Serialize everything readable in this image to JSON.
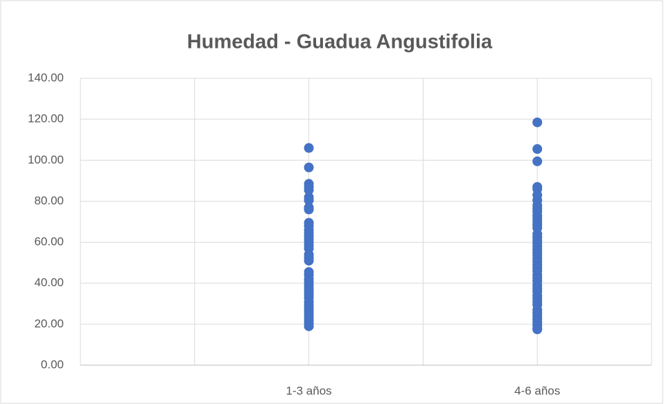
{
  "chart_data": {
    "type": "scatter",
    "title": "Humedad - Guadua Angustifolia",
    "xlim": [
      0,
      5
    ],
    "xgrid": [
      1,
      2,
      3,
      4,
      5
    ],
    "xticks": [
      {
        "value": 2,
        "label": "1-3 años"
      },
      {
        "value": 4,
        "label": "4-6 años"
      }
    ],
    "ylim": [
      0,
      140
    ],
    "yticks": [
      {
        "value": 0,
        "label": "0.00"
      },
      {
        "value": 20,
        "label": "20.00"
      },
      {
        "value": 40,
        "label": "40.00"
      },
      {
        "value": 60,
        "label": "60.00"
      },
      {
        "value": 80,
        "label": "80.00"
      },
      {
        "value": 100,
        "label": "100.00"
      },
      {
        "value": 120,
        "label": "120.00"
      },
      {
        "value": 140,
        "label": "140.00"
      }
    ],
    "grid": true,
    "series": [
      {
        "color": "#4472c4",
        "x": [
          2,
          2,
          2,
          2,
          2,
          2,
          2,
          2,
          2,
          2,
          2,
          2,
          2,
          2,
          2,
          2,
          2,
          2,
          2,
          2,
          2,
          2,
          2,
          2,
          2,
          2,
          2,
          2,
          2,
          2,
          2,
          2,
          2,
          2,
          2,
          2,
          2,
          2,
          2
        ],
        "values": [
          106,
          96.5,
          88.5,
          87,
          85.5,
          82,
          80.5,
          77,
          76,
          69.5,
          68,
          66,
          64.5,
          63,
          61.5,
          60,
          58.5,
          57,
          54,
          52.5,
          51,
          45.5,
          44,
          42,
          40.5,
          39,
          37.5,
          36,
          34.5,
          33,
          31,
          29.5,
          28,
          26.5,
          25,
          23.5,
          22,
          20.5,
          19
        ]
      },
      {
        "color": "#4472c4",
        "x": [
          4,
          4,
          4,
          4,
          4,
          4,
          4,
          4,
          4,
          4,
          4,
          4,
          4,
          4,
          4,
          4,
          4,
          4,
          4,
          4,
          4,
          4,
          4,
          4,
          4,
          4,
          4,
          4,
          4,
          4,
          4,
          4,
          4,
          4,
          4,
          4,
          4,
          4,
          4,
          4,
          4,
          4,
          4,
          4,
          4,
          4
        ],
        "values": [
          118.5,
          105.5,
          99.5,
          87,
          86,
          83,
          80.5,
          78,
          76.5,
          75,
          73,
          71.5,
          70,
          68.5,
          67,
          64,
          62.5,
          61,
          59.5,
          58,
          56.5,
          55,
          53.5,
          52,
          50.5,
          49,
          47.5,
          46,
          44,
          42.5,
          41,
          39,
          37.5,
          36,
          34,
          32.5,
          31,
          29.5,
          27,
          25.5,
          24,
          22.5,
          21,
          19.5,
          18,
          17.5
        ]
      }
    ]
  }
}
